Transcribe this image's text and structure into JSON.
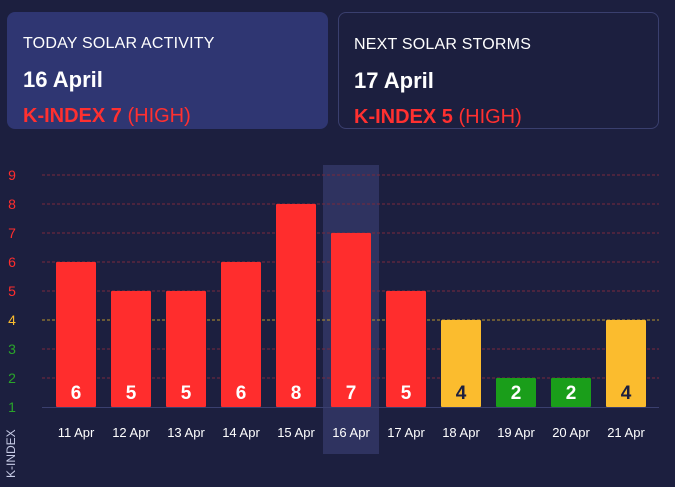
{
  "today": {
    "label": "TODAY SOLAR ACTIVITY",
    "date": "16 April",
    "kindex": "K-INDEX 7",
    "level": "(HIGH)"
  },
  "next": {
    "label": "NEXT SOLAR STORMS",
    "date": "17 April",
    "kindex": "K-INDEX 5",
    "level": "(HIGH)"
  },
  "colors": {
    "high": "#ff2d2d",
    "moderate": "#fbbc2e",
    "low": "#1a9e1a",
    "grid_red": "#7a2a3c",
    "grid_yellow": "#b8962c",
    "highlight": "#2f3360"
  },
  "chart_data": {
    "type": "bar",
    "categories": [
      "11 Apr",
      "12 Apr",
      "13 Apr",
      "14 Apr",
      "15 Apr",
      "16 Apr",
      "17 Apr",
      "18 Apr",
      "19 Apr",
      "20 Apr",
      "21 Apr"
    ],
    "values": [
      6,
      5,
      5,
      6,
      8,
      7,
      5,
      4,
      2,
      2,
      4
    ],
    "highlighted_category": "16 Apr",
    "xlabel": "",
    "ylabel": "K-INDEX",
    "yticks": [
      1,
      2,
      3,
      4,
      5,
      6,
      7,
      8,
      9
    ],
    "ylim": [
      1,
      9
    ],
    "grid": true,
    "data_labels": true
  }
}
